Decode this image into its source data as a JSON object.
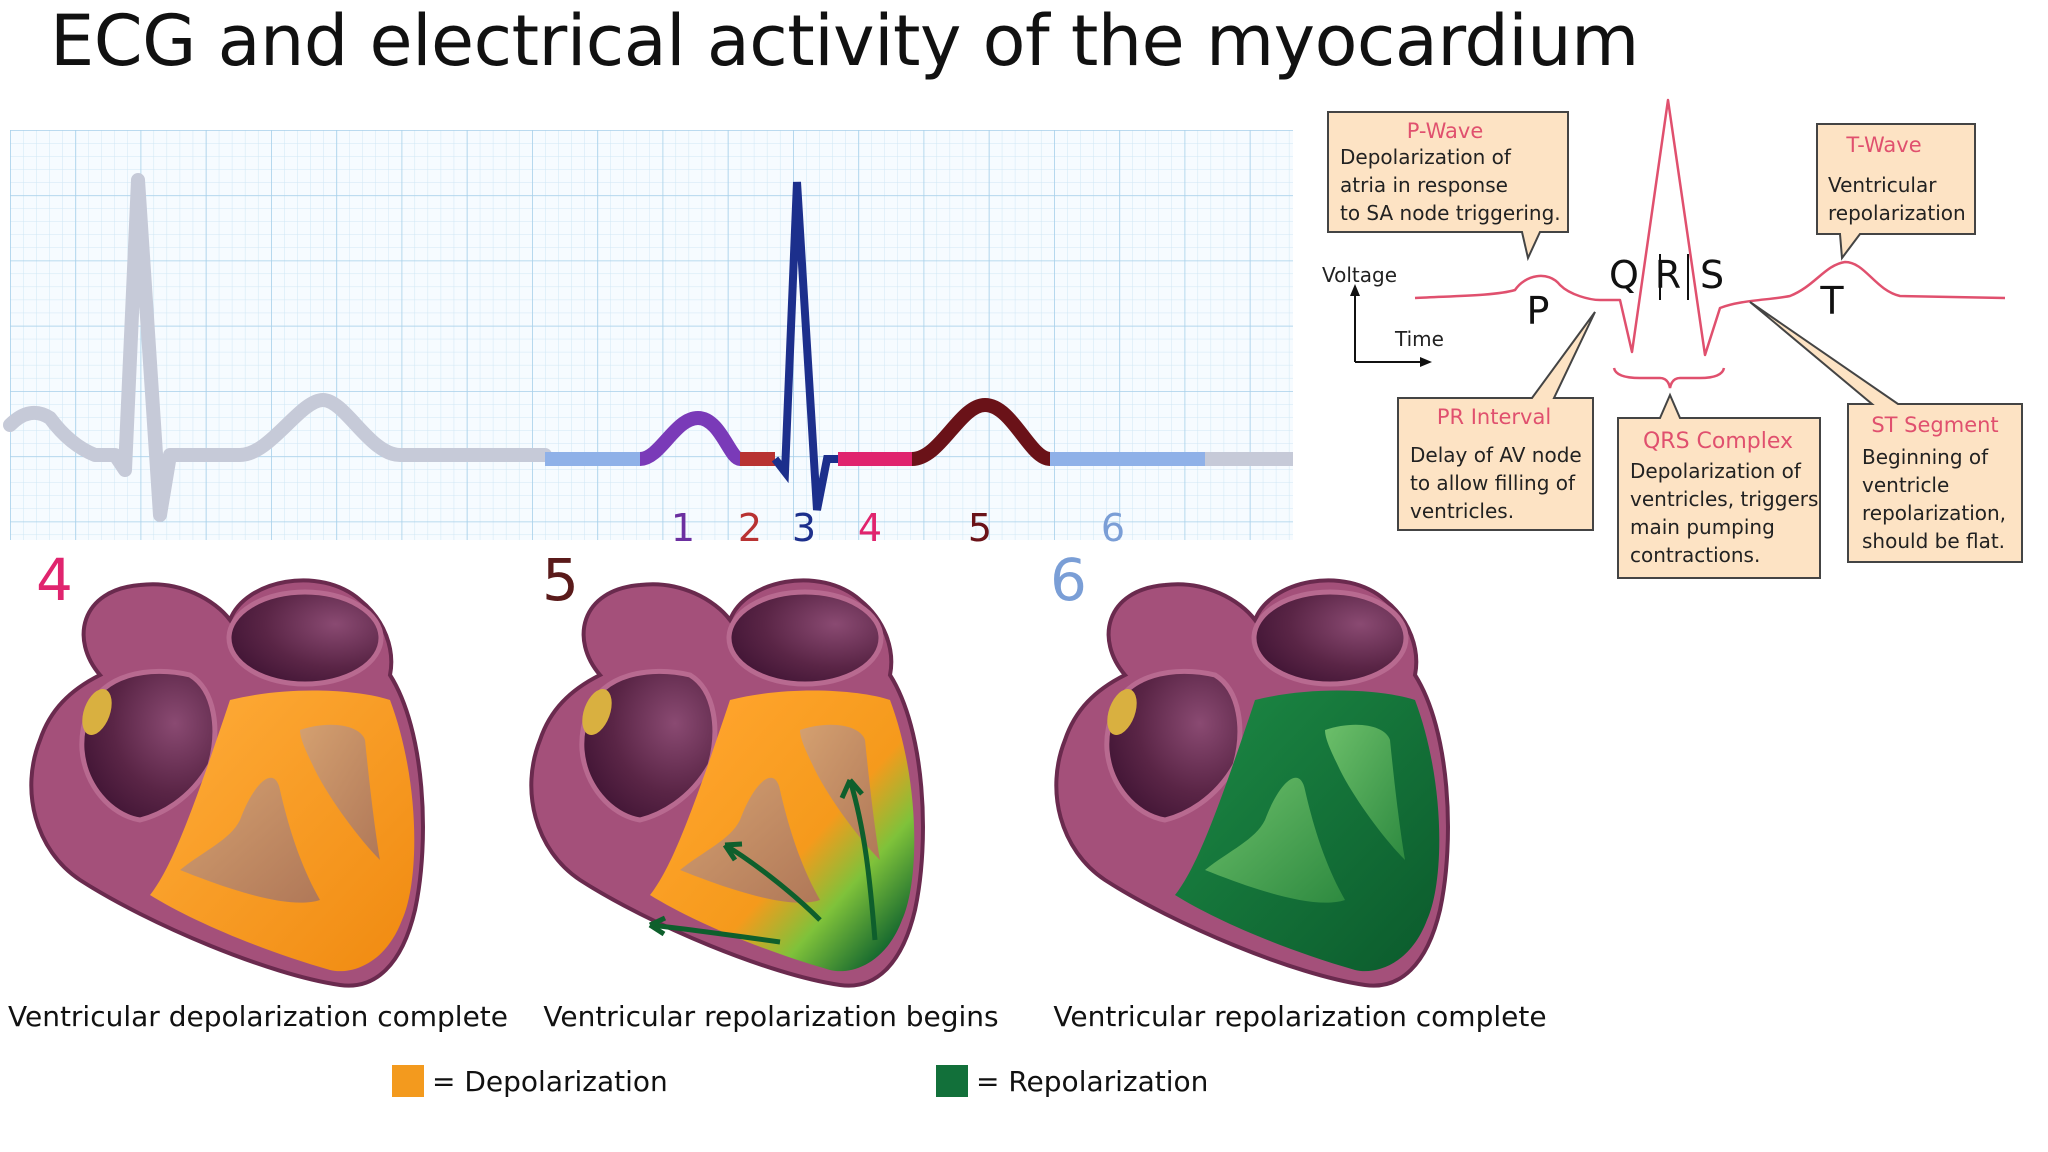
{
  "title": "ECG and electrical activity of the myocardium",
  "strip": {
    "phase_numbers": [
      {
        "label": "1",
        "color": "#6b2fa0"
      },
      {
        "label": "2",
        "color": "#b83232"
      },
      {
        "label": "3",
        "color": "#1c2f8c"
      },
      {
        "label": "4",
        "color": "#e0246e"
      },
      {
        "label": "5",
        "color": "#6a1218"
      },
      {
        "label": "6",
        "color": "#7a9ed6"
      }
    ]
  },
  "segment_colors": {
    "trace_faded": "#c6cad8",
    "baseline_blue": "#8fb1e8",
    "p_wave": "#7a3ab8",
    "pr_segment": "#b83232",
    "qrs": "#1c2f8c",
    "st_segment": "#e0246e",
    "t_wave": "#6a1218",
    "grid_minor": "#cfe6f4",
    "grid_major": "#a7d0ea"
  },
  "reference_ecg": {
    "axis_y": "Voltage",
    "axis_x": "Time",
    "wave_letters": [
      "P",
      "Q",
      "R",
      "S",
      "T"
    ],
    "callouts": {
      "p_wave": {
        "heading": "P-Wave",
        "lines": [
          "Depolarization of",
          "atria in response",
          "to SA node triggering."
        ]
      },
      "t_wave": {
        "heading": "T-Wave",
        "lines": [
          "Ventricular",
          "repolarization"
        ]
      },
      "pr_interval": {
        "heading": "PR  Interval",
        "lines": [
          "Delay of AV node",
          "to allow filling of",
          "ventricles."
        ]
      },
      "qrs_complex": {
        "heading": "QRS Complex",
        "lines": [
          "Depolarization of",
          "ventricles, triggers",
          "main pumping",
          "contractions."
        ]
      },
      "st_segment": {
        "heading": "ST Segment",
        "lines": [
          "Beginning of",
          "ventricle",
          "repolarization,",
          "should be flat."
        ]
      }
    }
  },
  "panels": [
    {
      "number": "4",
      "number_color": "#e0246e",
      "caption": "Ventricular depolarization complete",
      "state": "depolarized"
    },
    {
      "number": "5",
      "number_color": "#5a1a1a",
      "caption": "Ventricular repolarization begins",
      "state": "partial"
    },
    {
      "number": "6",
      "number_color": "#7a9ed6",
      "caption": "Ventricular repolarization complete",
      "state": "repolarized"
    }
  ],
  "legend": [
    {
      "label": "= Depolarization",
      "color": "#f39a1e"
    },
    {
      "label": "= Repolarization",
      "color": "#12703a"
    }
  ]
}
